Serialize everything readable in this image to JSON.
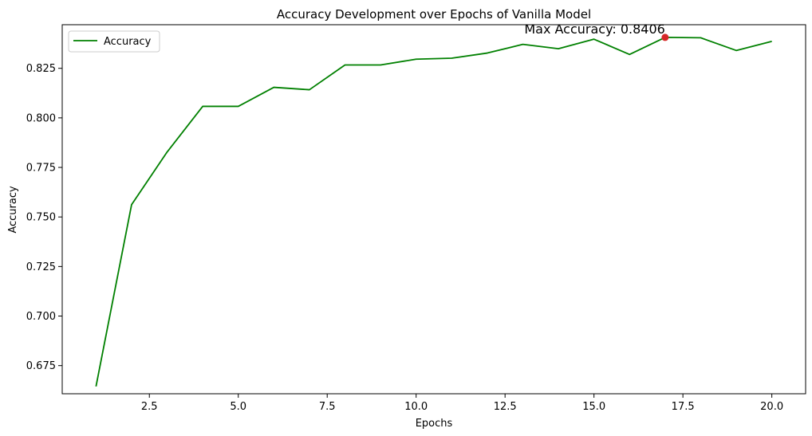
{
  "chart_data": {
    "type": "line",
    "title": "Accuracy Development over Epochs of Vanilla Model",
    "xlabel": "Epochs",
    "ylabel": "Accuracy",
    "xlim": [
      0.05,
      20.95
    ],
    "ylim": [
      0.6608,
      0.847
    ],
    "xticks": [
      2.5,
      5.0,
      7.5,
      10.0,
      12.5,
      15.0,
      17.5,
      20.0
    ],
    "xtick_labels": [
      "2.5",
      "5.0",
      "7.5",
      "10.0",
      "12.5",
      "15.0",
      "17.5",
      "20.0"
    ],
    "yticks": [
      0.675,
      0.7,
      0.725,
      0.75,
      0.775,
      0.8,
      0.825
    ],
    "ytick_labels": [
      "0.675",
      "0.700",
      "0.725",
      "0.750",
      "0.775",
      "0.800",
      "0.825"
    ],
    "grid": false,
    "legend_position": "top-left",
    "series": [
      {
        "name": "Accuracy",
        "color": "#008000",
        "x": [
          1,
          2,
          3,
          4,
          5,
          6,
          7,
          8,
          9,
          10,
          11,
          12,
          13,
          14,
          15,
          16,
          17,
          18,
          19,
          20
        ],
        "y": [
          0.6645,
          0.7562,
          0.7828,
          0.8058,
          0.8058,
          0.8154,
          0.8142,
          0.8267,
          0.8267,
          0.8296,
          0.8301,
          0.8327,
          0.8371,
          0.8349,
          0.8397,
          0.832,
          0.8406,
          0.8404,
          0.834,
          0.8386
        ]
      }
    ],
    "annotations": [
      {
        "text": "Max Accuracy: 0.8406",
        "x": 17,
        "y": 0.8406,
        "marker_color": "#d62728"
      }
    ]
  }
}
